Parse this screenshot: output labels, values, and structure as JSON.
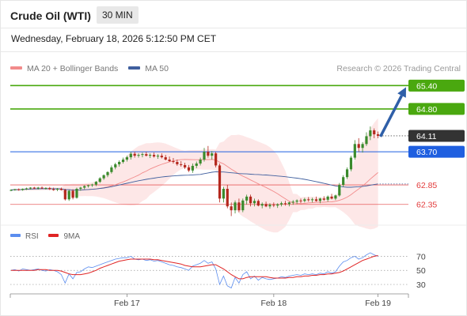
{
  "header": {
    "title": "Crude Oil (WTI)",
    "interval": "30 MIN"
  },
  "datetime": "Wednesday, February 18, 2026 5:12:50 PM CET",
  "legend": {
    "bollinger": {
      "label": "MA 20 + Bollinger Bands",
      "color": "#f28b8b"
    },
    "ma50": {
      "label": "MA 50",
      "color": "#3f5f9e"
    }
  },
  "copyright": "Research © 2026 Trading Central",
  "rsi_legend": {
    "rsi": {
      "label": "RSI",
      "color": "#5b8def"
    },
    "ma9": {
      "label": "9MA",
      "color": "#e02424"
    }
  },
  "chart_data": [
    {
      "type": "candlestick",
      "ylim": [
        62.0,
        65.65
      ],
      "x_ticks": [
        "Feb 17",
        "Feb 18",
        "Feb 19"
      ],
      "current_price": {
        "value": "64.11",
        "color": "#333333"
      },
      "levels": [
        {
          "value": "65.40",
          "kind": "resistance",
          "color": "#4aa80f"
        },
        {
          "value": "64.80",
          "kind": "resistance",
          "color": "#4aa80f"
        },
        {
          "value": "63.70",
          "kind": "pivot",
          "color": "#1f5fe0"
        },
        {
          "value": "62.85",
          "kind": "support",
          "color": "#e23a3a"
        },
        {
          "value": "62.35",
          "kind": "support",
          "color": "#e23a3a"
        }
      ],
      "arrow": {
        "from": 64.11,
        "to": 65.4,
        "color": "#2f5fa8"
      },
      "candles": [
        [
          62.72,
          62.74,
          62.69,
          62.72
        ],
        [
          62.72,
          62.75,
          62.7,
          62.74
        ],
        [
          62.74,
          62.76,
          62.7,
          62.72
        ],
        [
          62.72,
          62.76,
          62.7,
          62.75
        ],
        [
          62.75,
          62.78,
          62.72,
          62.76
        ],
        [
          62.76,
          62.79,
          62.73,
          62.78
        ],
        [
          62.78,
          62.8,
          62.74,
          62.76
        ],
        [
          62.76,
          62.8,
          62.73,
          62.78
        ],
        [
          62.78,
          62.81,
          62.75,
          62.76
        ],
        [
          62.76,
          62.79,
          62.73,
          62.77
        ],
        [
          62.77,
          62.8,
          62.72,
          62.74
        ],
        [
          62.74,
          62.78,
          62.7,
          62.73
        ],
        [
          62.73,
          62.77,
          62.69,
          62.75
        ],
        [
          62.75,
          62.78,
          62.71,
          62.72
        ],
        [
          62.72,
          62.75,
          62.45,
          62.48
        ],
        [
          62.48,
          62.72,
          62.44,
          62.7
        ],
        [
          62.7,
          62.74,
          62.48,
          62.52
        ],
        [
          62.52,
          62.78,
          62.5,
          62.75
        ],
        [
          62.75,
          62.8,
          62.7,
          62.78
        ],
        [
          62.78,
          62.84,
          62.74,
          62.82
        ],
        [
          62.82,
          62.86,
          62.78,
          62.84
        ],
        [
          62.84,
          62.88,
          62.8,
          62.86
        ],
        [
          62.86,
          62.95,
          62.82,
          62.93
        ],
        [
          62.93,
          63.05,
          62.9,
          63.02
        ],
        [
          63.02,
          63.12,
          62.98,
          63.1
        ],
        [
          63.1,
          63.2,
          63.05,
          63.18
        ],
        [
          63.18,
          63.35,
          63.14,
          63.3
        ],
        [
          63.3,
          63.42,
          63.25,
          63.38
        ],
        [
          63.38,
          63.48,
          63.32,
          63.44
        ],
        [
          63.44,
          63.55,
          63.4,
          63.5
        ],
        [
          63.5,
          63.6,
          63.45,
          63.56
        ],
        [
          63.56,
          63.7,
          63.5,
          63.65
        ],
        [
          63.65,
          63.7,
          63.55,
          63.6
        ],
        [
          63.6,
          63.66,
          63.55,
          63.62
        ],
        [
          63.62,
          63.68,
          63.56,
          63.64
        ],
        [
          63.64,
          63.7,
          63.58,
          63.6
        ],
        [
          63.6,
          63.66,
          63.54,
          63.62
        ],
        [
          63.62,
          63.68,
          63.55,
          63.58
        ],
        [
          63.58,
          63.64,
          63.52,
          63.6
        ],
        [
          63.6,
          63.66,
          63.53,
          63.56
        ],
        [
          63.56,
          63.62,
          63.48,
          63.5
        ],
        [
          63.5,
          63.58,
          63.44,
          63.46
        ],
        [
          63.46,
          63.54,
          63.4,
          63.44
        ],
        [
          63.44,
          63.5,
          63.34,
          63.38
        ],
        [
          63.38,
          63.46,
          63.32,
          63.36
        ],
        [
          63.36,
          63.42,
          63.26,
          63.3
        ],
        [
          63.3,
          63.36,
          63.18,
          63.22
        ],
        [
          63.22,
          63.4,
          63.16,
          63.34
        ],
        [
          63.34,
          63.45,
          63.28,
          63.4
        ],
        [
          63.4,
          63.55,
          63.35,
          63.5
        ],
        [
          63.5,
          63.8,
          63.45,
          63.7
        ],
        [
          63.7,
          63.85,
          63.55,
          63.6
        ],
        [
          63.6,
          63.72,
          63.5,
          63.66
        ],
        [
          63.66,
          63.7,
          63.3,
          63.35
        ],
        [
          63.35,
          63.4,
          62.4,
          62.5
        ],
        [
          62.5,
          62.8,
          62.4,
          62.75
        ],
        [
          62.75,
          62.85,
          62.25,
          62.3
        ],
        [
          62.3,
          62.4,
          62.05,
          62.2
        ],
        [
          62.2,
          62.45,
          62.12,
          62.4
        ],
        [
          62.4,
          62.5,
          62.15,
          62.2
        ],
        [
          62.2,
          62.5,
          62.15,
          62.45
        ],
        [
          62.45,
          62.6,
          62.35,
          62.55
        ],
        [
          62.55,
          62.6,
          62.3,
          62.38
        ],
        [
          62.38,
          62.5,
          62.3,
          62.44
        ],
        [
          62.44,
          62.48,
          62.3,
          62.32
        ],
        [
          62.32,
          62.4,
          62.25,
          62.36
        ],
        [
          62.36,
          62.42,
          62.28,
          62.3
        ],
        [
          62.3,
          62.38,
          62.24,
          62.34
        ],
        [
          62.34,
          62.4,
          62.28,
          62.32
        ],
        [
          62.32,
          62.38,
          62.26,
          62.35
        ],
        [
          62.35,
          62.42,
          62.3,
          62.38
        ],
        [
          62.38,
          62.44,
          62.32,
          62.36
        ],
        [
          62.36,
          62.42,
          62.3,
          62.4
        ],
        [
          62.4,
          62.46,
          62.34,
          62.42
        ],
        [
          62.42,
          62.48,
          62.36,
          62.45
        ],
        [
          62.45,
          62.5,
          62.38,
          62.44
        ],
        [
          62.44,
          62.52,
          62.4,
          62.48
        ],
        [
          62.48,
          62.54,
          62.42,
          62.46
        ],
        [
          62.46,
          62.52,
          62.4,
          62.48
        ],
        [
          62.48,
          62.55,
          62.42,
          62.44
        ],
        [
          62.44,
          62.52,
          62.38,
          62.5
        ],
        [
          62.5,
          62.56,
          62.44,
          62.47
        ],
        [
          62.47,
          62.58,
          62.42,
          62.55
        ],
        [
          62.55,
          62.62,
          62.48,
          62.5
        ],
        [
          62.5,
          62.6,
          62.46,
          62.58
        ],
        [
          62.58,
          62.9,
          62.55,
          62.85
        ],
        [
          62.85,
          63.1,
          62.8,
          63.05
        ],
        [
          63.05,
          63.3,
          63.0,
          63.25
        ],
        [
          63.25,
          63.6,
          63.2,
          63.55
        ],
        [
          63.55,
          64.0,
          63.5,
          63.9
        ],
        [
          63.9,
          64.05,
          63.7,
          63.8
        ],
        [
          63.8,
          63.95,
          63.68,
          63.9
        ],
        [
          63.9,
          64.2,
          63.85,
          64.1
        ],
        [
          64.1,
          64.35,
          64.0,
          64.25
        ],
        [
          64.25,
          64.3,
          64.05,
          64.15
        ],
        [
          64.15,
          64.22,
          64.05,
          64.11
        ]
      ]
    },
    {
      "type": "line",
      "title": "RSI",
      "ylim": [
        20,
        85
      ],
      "y_ticks": [
        "70",
        "50",
        "30"
      ],
      "rsi": [
        50,
        51,
        49,
        52,
        51,
        50,
        51,
        52,
        50,
        49,
        51,
        50,
        48,
        44,
        32,
        45,
        38,
        47,
        48,
        52,
        55,
        54,
        56,
        58,
        60,
        62,
        64,
        66,
        67,
        68,
        68,
        70,
        66,
        65,
        66,
        64,
        65,
        63,
        64,
        62,
        60,
        58,
        57,
        55,
        54,
        52,
        50,
        56,
        58,
        60,
        64,
        60,
        62,
        52,
        30,
        42,
        28,
        25,
        40,
        32,
        44,
        48,
        38,
        42,
        36,
        40,
        38,
        37,
        38,
        39,
        41,
        40,
        42,
        43,
        44,
        43,
        45,
        44,
        45,
        44,
        46,
        45,
        48,
        46,
        48,
        56,
        62,
        64,
        68,
        70,
        66,
        68,
        72,
        75,
        72,
        70
      ],
      "ma9": [
        50,
        50,
        50,
        50,
        50,
        50,
        50,
        51,
        51,
        51,
        50,
        50,
        50,
        49,
        47,
        45,
        44,
        44,
        44,
        45,
        46,
        48,
        50,
        53,
        55,
        57,
        59,
        61,
        63,
        64,
        65,
        66,
        66,
        66,
        66,
        66,
        66,
        65,
        65,
        64,
        63,
        62,
        61,
        60,
        59,
        57,
        56,
        55,
        55,
        55,
        56,
        57,
        58,
        58,
        55,
        52,
        48,
        44,
        41,
        38,
        38,
        40,
        41,
        41,
        41,
        41,
        41,
        40,
        39,
        39,
        39,
        39,
        40,
        40,
        41,
        41,
        42,
        42,
        43,
        43,
        44,
        44,
        45,
        45,
        46,
        47,
        49,
        52,
        55,
        58,
        61,
        64,
        66,
        68,
        70,
        71
      ]
    }
  ]
}
